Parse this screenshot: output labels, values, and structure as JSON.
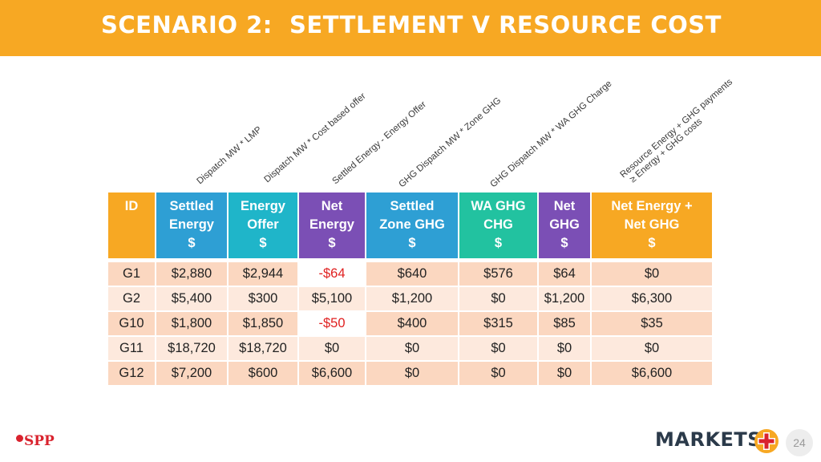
{
  "title": "SCENARIO 2:  SETTLEMENT V RESOURCE COST",
  "annotations": [
    "Dispatch MW * LMP",
    "Dispatch MW * Cost based offer",
    "Settled Energy - Energy Offer",
    "GHG Dispatch MW * Zone GHG",
    "GHG Dispatch MW * WA GHG Charge",
    "Resource Energy + GHG payments",
    "≥ Energy + GHG costs"
  ],
  "table": {
    "headers": [
      {
        "lines": [
          "ID"
        ],
        "color": "#F7A823"
      },
      {
        "lines": [
          "Settled",
          "Energy",
          "$"
        ],
        "color": "#2E9FD4"
      },
      {
        "lines": [
          "Energy",
          "Offer",
          "$"
        ],
        "color": "#1FB5C9"
      },
      {
        "lines": [
          "Net",
          "Energy",
          "$"
        ],
        "color": "#7B4FB5"
      },
      {
        "lines": [
          "Settled",
          "Zone GHG",
          "$"
        ],
        "color": "#2E9FD4"
      },
      {
        "lines": [
          "WA GHG",
          "CHG",
          "$"
        ],
        "color": "#22C2A0"
      },
      {
        "lines": [
          "Net",
          "GHG",
          "$"
        ],
        "color": "#7B4FB5"
      },
      {
        "lines": [
          "Net Energy +",
          "Net GHG",
          "$"
        ],
        "color": "#F7A823"
      }
    ],
    "rows": [
      [
        "G1",
        "$2,880",
        "$2,944",
        "-$64",
        "$640",
        "$576",
        "$64",
        "$0"
      ],
      [
        "G2",
        "$5,400",
        "$300",
        "$5,100",
        "$1,200",
        "$0",
        "$1,200",
        "$6,300"
      ],
      [
        "G10",
        "$1,800",
        "$1,850",
        "-$50",
        "$400",
        "$315",
        "$85",
        "$35"
      ],
      [
        "G11",
        "$18,720",
        "$18,720",
        "$0",
        "$0",
        "$0",
        "$0",
        "$0"
      ],
      [
        "G12",
        "$7,200",
        "$600",
        "$6,600",
        "$0",
        "$0",
        "$0",
        "$6,600"
      ]
    ]
  },
  "footer": {
    "left_logo": "SPP",
    "right_logo": "MARKETS",
    "page_number": "24"
  },
  "colors": {
    "title_bar": "#F7A823",
    "negative": "#E02020",
    "row_a": "#FBD7C0",
    "row_b": "#FDE9DD"
  }
}
